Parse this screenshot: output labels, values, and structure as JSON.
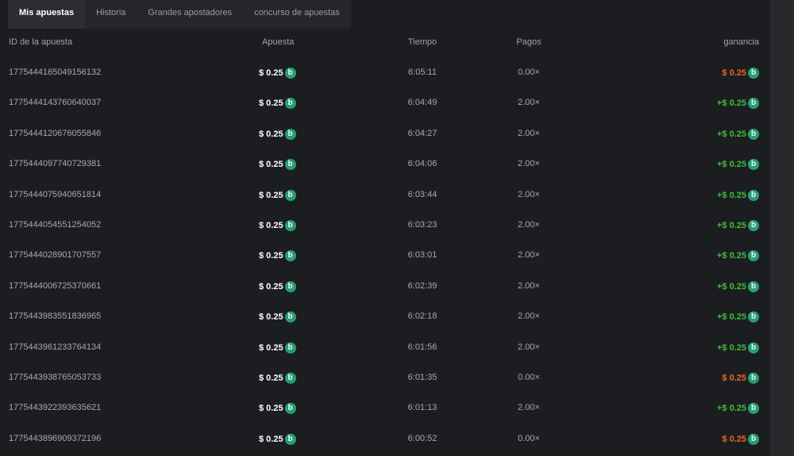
{
  "tabs": [
    {
      "label": "Mis apuestas",
      "active": true
    },
    {
      "label": "Historia"
    },
    {
      "label": "Grandes apostadores"
    },
    {
      "label": "concurso de apuestas"
    }
  ],
  "columns": {
    "id": "ID de la apuesta",
    "bet": "Apuesta",
    "time": "Tiempo",
    "payout": "Pagos",
    "profit": "ganancia"
  },
  "colors": {
    "coin": "#2a9d73",
    "loss": "#e8662c",
    "win": "#3fbf3a"
  },
  "rows": [
    {
      "id": "1775444165049156132",
      "bet": "$ 0.25",
      "time": "6:05:11",
      "payout": "0.00×",
      "profit": "$ 0.25",
      "result": "loss"
    },
    {
      "id": "1775444143760640037",
      "bet": "$ 0.25",
      "time": "6:04:49",
      "payout": "2.00×",
      "profit": "+$ 0.25",
      "result": "win"
    },
    {
      "id": "1775444120676055846",
      "bet": "$ 0.25",
      "time": "6:04:27",
      "payout": "2.00×",
      "profit": "+$ 0.25",
      "result": "win"
    },
    {
      "id": "1775444097740729381",
      "bet": "$ 0.25",
      "time": "6:04:06",
      "payout": "2.00×",
      "profit": "+$ 0.25",
      "result": "win"
    },
    {
      "id": "1775444075940651814",
      "bet": "$ 0.25",
      "time": "6:03:44",
      "payout": "2.00×",
      "profit": "+$ 0.25",
      "result": "win"
    },
    {
      "id": "1775444054551254052",
      "bet": "$ 0.25",
      "time": "6:03:23",
      "payout": "2.00×",
      "profit": "+$ 0.25",
      "result": "win"
    },
    {
      "id": "1775444028901707557",
      "bet": "$ 0.25",
      "time": "6:03:01",
      "payout": "2.00×",
      "profit": "+$ 0.25",
      "result": "win"
    },
    {
      "id": "1775444006725370661",
      "bet": "$ 0.25",
      "time": "6:02:39",
      "payout": "2.00×",
      "profit": "+$ 0.25",
      "result": "win"
    },
    {
      "id": "1775443983551836965",
      "bet": "$ 0.25",
      "time": "6:02:18",
      "payout": "2.00×",
      "profit": "+$ 0.25",
      "result": "win"
    },
    {
      "id": "1775443961233764134",
      "bet": "$ 0.25",
      "time": "6:01:56",
      "payout": "2.00×",
      "profit": "+$ 0.25",
      "result": "win"
    },
    {
      "id": "1775443938765053733",
      "bet": "$ 0.25",
      "time": "6:01:35",
      "payout": "0.00×",
      "profit": "$ 0.25",
      "result": "loss"
    },
    {
      "id": "1775443922393635621",
      "bet": "$ 0.25",
      "time": "6:01:13",
      "payout": "2.00×",
      "profit": "+$ 0.25",
      "result": "win"
    },
    {
      "id": "1775443896909372196",
      "bet": "$ 0.25",
      "time": "6:00:52",
      "payout": "0.00×",
      "profit": "$ 0.25",
      "result": "loss"
    }
  ]
}
